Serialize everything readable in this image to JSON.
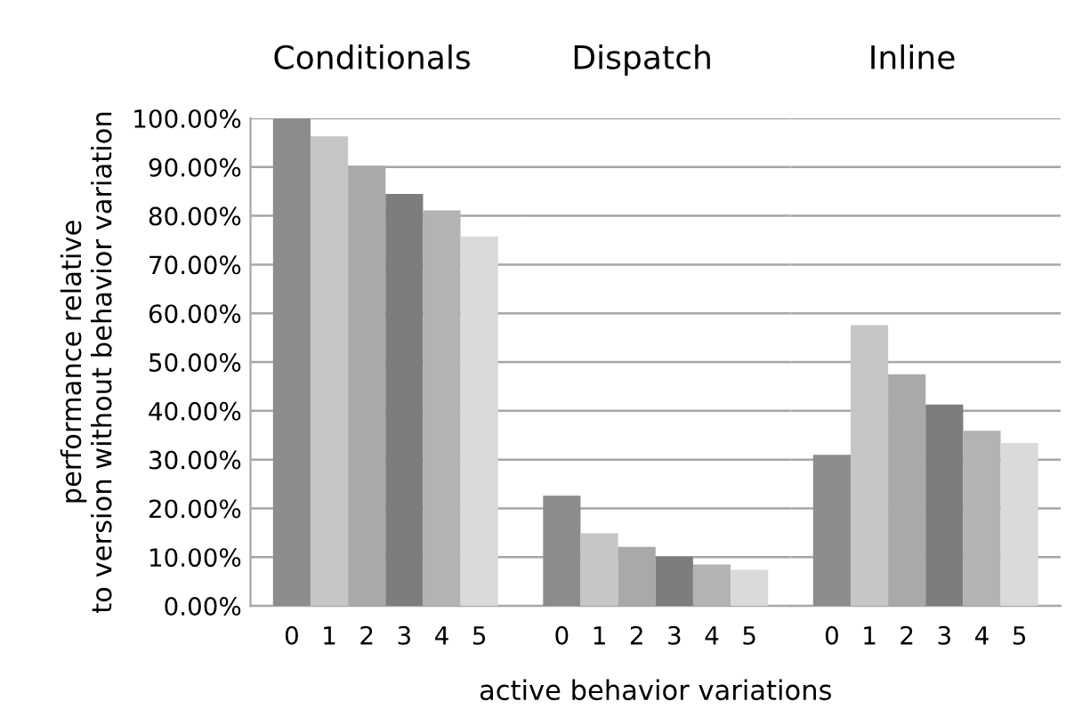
{
  "chart_data": [
    {
      "type": "bar",
      "title": "Conditionals",
      "ylabel": "performance relative\nto version without behavior variation",
      "categories": [
        "0",
        "1",
        "2",
        "3",
        "4",
        "5"
      ],
      "values": [
        100,
        96.3,
        90.3,
        84.5,
        81.1,
        75.8
      ],
      "colors": [
        "#8c8c8c",
        "#c6c6c6",
        "#a9a9a9",
        "#7d7d7d",
        "#b3b3b3",
        "#dadada"
      ],
      "ylim": [
        0,
        100
      ],
      "yticks": [
        {
          "value": 0,
          "label": "0.00%"
        },
        {
          "value": 10,
          "label": "10.00%"
        },
        {
          "value": 20,
          "label": "20.00%"
        },
        {
          "value": 30,
          "label": "30.00%"
        },
        {
          "value": 40,
          "label": "40.00%"
        },
        {
          "value": 50,
          "label": "50.00%"
        },
        {
          "value": 60,
          "label": "60.00%"
        },
        {
          "value": 70,
          "label": "70.00%"
        },
        {
          "value": 80,
          "label": "80.00%"
        },
        {
          "value": 90,
          "label": "90.00%"
        },
        {
          "value": 100,
          "label": "100.00%"
        }
      ],
      "grid": "y"
    },
    {
      "type": "bar",
      "title": "Dispatch",
      "xlabel": "active behavior variations",
      "categories": [
        "0",
        "1",
        "2",
        "3",
        "4",
        "5"
      ],
      "values": [
        22.6,
        14.9,
        12.1,
        10.1,
        8.5,
        7.4
      ],
      "colors": [
        "#8c8c8c",
        "#c6c6c6",
        "#a9a9a9",
        "#7d7d7d",
        "#b3b3b3",
        "#dadada"
      ],
      "ylim": [
        0,
        100
      ],
      "tick_labels": "x",
      "grid": "y"
    },
    {
      "type": "bar",
      "title": "Inline",
      "categories": [
        "0",
        "1",
        "2",
        "3",
        "4",
        "5"
      ],
      "values": [
        31.0,
        57.6,
        47.5,
        41.3,
        35.9,
        33.4
      ],
      "colors": [
        "#8c8c8c",
        "#c6c6c6",
        "#a9a9a9",
        "#7d7d7d",
        "#b3b3b3",
        "#dadada"
      ],
      "ylim": [
        0,
        100
      ],
      "tick_labels": "x",
      "grid": "y"
    }
  ]
}
